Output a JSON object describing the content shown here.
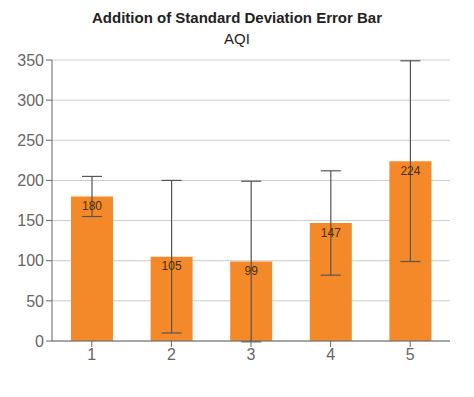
{
  "chart_data": {
    "type": "bar",
    "title": "Addition of Standard Deviation Error Bar",
    "subtitle": "AQI",
    "categories": [
      1,
      2,
      3,
      4,
      5
    ],
    "values": [
      180,
      105,
      99,
      147,
      224
    ],
    "errors": [
      25,
      95,
      100,
      65,
      125
    ],
    "color": "#F4892A",
    "ylim": [
      0,
      350
    ],
    "yticks": [
      0,
      50,
      100,
      150,
      200,
      250,
      300,
      350
    ],
    "grid": true,
    "data_labels": true
  }
}
